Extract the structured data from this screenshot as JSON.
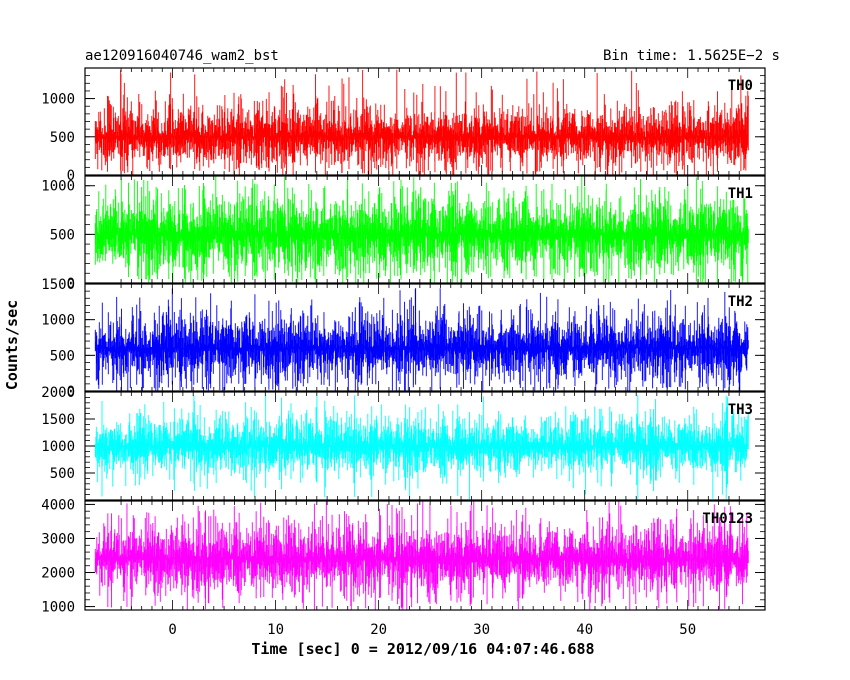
{
  "header": {
    "object_name": "ae120916040746_wam2_bst",
    "bin_time": "Bin time: 1.5625E−2 s"
  },
  "colors": {
    "TH0": "#ff0000",
    "TH1": "#00ff00",
    "TH2": "#0000ff",
    "TH3": "#00ffff",
    "TH0123": "#ff00ff",
    "frame": "#000000"
  },
  "chart_data": {
    "type": "line",
    "xlabel": "Time [sec] 0 = 2012/09/16 04:07:46.688",
    "ylabel": "Counts/sec",
    "xlim": [
      -8.5,
      57.5
    ],
    "x_ticks": [
      0,
      10,
      20,
      30,
      40,
      50
    ],
    "x_range_data": [
      -7.5,
      55.9
    ],
    "panels": [
      {
        "name": "TH0",
        "ylim": [
          0,
          1400
        ],
        "y_ticks": [
          0,
          500,
          1000
        ],
        "mean": 500,
        "sigma": 175,
        "typical_min": 100,
        "typical_max": 1000,
        "peak_max": 1380
      },
      {
        "name": "TH1",
        "ylim": [
          0,
          1100
        ],
        "y_ticks": [
          0,
          500,
          1000
        ],
        "mean": 500,
        "sigma": 175,
        "typical_min": 100,
        "typical_max": 950,
        "peak_max": 1100
      },
      {
        "name": "TH2",
        "ylim": [
          0,
          1500
        ],
        "y_ticks": [
          0,
          500,
          1000,
          1500
        ],
        "mean": 600,
        "sigma": 210,
        "typical_min": 100,
        "typical_max": 1100,
        "peak_max": 1450
      },
      {
        "name": "TH3",
        "ylim": [
          0,
          2000
        ],
        "y_ticks": [
          500,
          1000,
          1500,
          2000
        ],
        "mean": 1000,
        "sigma": 230,
        "typical_min": 400,
        "typical_max": 1600,
        "peak_max": 1950
      },
      {
        "name": "TH0123",
        "ylim": [
          900,
          4100
        ],
        "y_ticks": [
          1000,
          2000,
          3000,
          4000
        ],
        "mean": 2400,
        "sigma": 450,
        "typical_min": 1300,
        "typical_max": 3600,
        "peak_max": 4100
      }
    ]
  }
}
